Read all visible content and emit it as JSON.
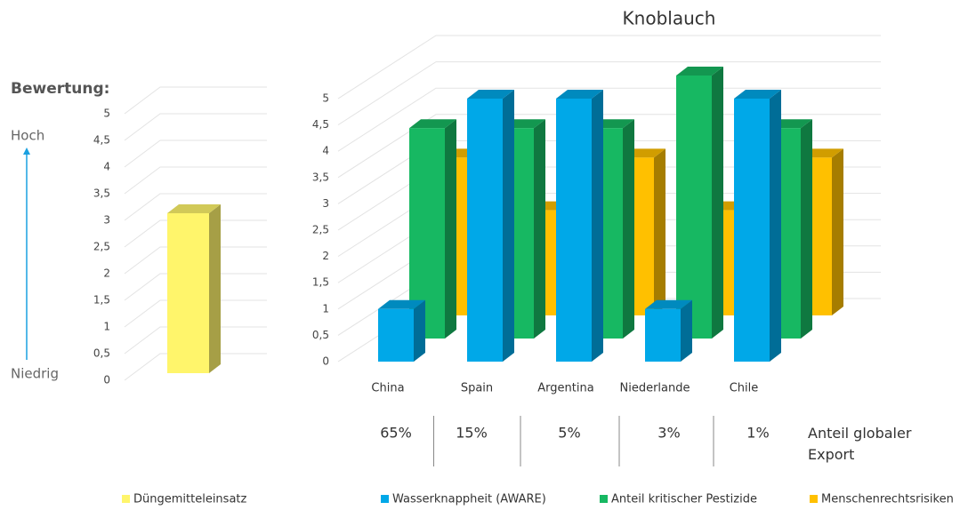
{
  "chart_data": [
    {
      "type": "bar3d",
      "ylabel": "Bewertung:",
      "scale_high": "Hoch",
      "scale_low": "Niedrig",
      "categories": [
        null
      ],
      "series": [
        {
          "name": "Düngemitteleinsatz",
          "color": "#fff56b",
          "values": [
            3
          ]
        }
      ],
      "ylim": [
        0,
        5
      ],
      "yticks": [
        0,
        {
          "value": 0.5,
          "label": "0,5"
        },
        1,
        {
          "value": 1.5,
          "label": "1,5"
        },
        2,
        {
          "value": 2.5,
          "label": "2,5"
        },
        3,
        {
          "value": 3.5,
          "label": "3,5"
        },
        4,
        {
          "value": 4.5,
          "label": "4,5"
        },
        5
      ],
      "grid": true
    },
    {
      "type": "bar3d",
      "title": "Knoblauch",
      "categories": [
        "China",
        "Spain",
        "Argentina",
        "Niederlande",
        "Chile"
      ],
      "series": [
        {
          "name": "Wasserknappheit (AWARE)",
          "color": "#00a8e8",
          "values": [
            1,
            5,
            5,
            1,
            5
          ]
        },
        {
          "name": "Anteil kritischer Pestizide",
          "color": "#17b862",
          "values": [
            4,
            4,
            4,
            5,
            4
          ]
        },
        {
          "name": "Menschenrechtsrisiken",
          "color": "#ffc000",
          "values": [
            3,
            2,
            3,
            2,
            3
          ]
        }
      ],
      "ylim": [
        0,
        5
      ],
      "yticks": [
        0,
        {
          "value": 0.5,
          "label": "0,5"
        },
        1,
        {
          "value": 1.5,
          "label": "1,5"
        },
        2,
        {
          "value": 2.5,
          "label": "2,5"
        },
        3,
        {
          "value": 3.5,
          "label": "3,5"
        },
        4,
        {
          "value": 4.5,
          "label": "4,5"
        },
        5
      ],
      "grid": true,
      "export_label": "Anteil globaler Export",
      "export_values": [
        65,
        15,
        5,
        3,
        1
      ],
      "export_value_labels": [
        "65%",
        "15%",
        "5%",
        "3%",
        "1%"
      ]
    }
  ]
}
